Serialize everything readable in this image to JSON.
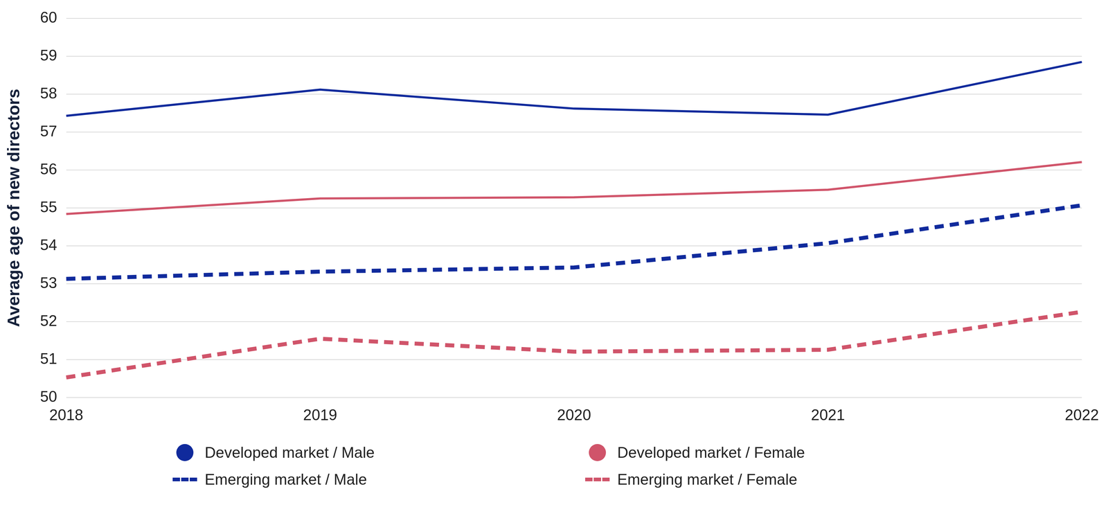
{
  "chart_data": {
    "type": "line",
    "y_label": "Average age of new directors",
    "categories": [
      "2018",
      "2019",
      "2020",
      "2021",
      "2022"
    ],
    "series": [
      {
        "name": "Developed market / Male",
        "color": "#102a9c",
        "line_style": "solid",
        "values": [
          57.43,
          58.12,
          57.62,
          57.46,
          58.85
        ]
      },
      {
        "name": "Developed market / Female",
        "color": "#d0546a",
        "line_style": "solid",
        "values": [
          54.84,
          55.25,
          55.28,
          55.48,
          56.21
        ]
      },
      {
        "name": "Emerging market / Male",
        "color": "#102a9c",
        "line_style": "dashed",
        "values": [
          53.13,
          53.32,
          53.43,
          54.07,
          55.07
        ]
      },
      {
        "name": "Emerging market / Female",
        "color": "#d0546a",
        "line_style": "dashed",
        "values": [
          50.53,
          51.55,
          51.21,
          51.26,
          52.26
        ]
      }
    ],
    "ylim": [
      50,
      60
    ],
    "yticks": [
      50,
      51,
      52,
      53,
      54,
      55,
      56,
      57,
      58,
      59,
      60
    ],
    "grid": true,
    "legend": "bottom"
  }
}
